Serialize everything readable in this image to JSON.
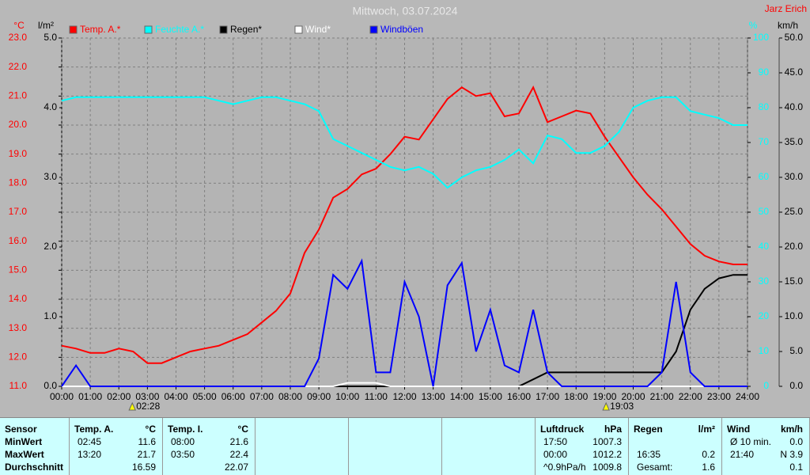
{
  "chart_data": {
    "type": "line",
    "title": "Mittwoch, 03.07.2024",
    "author": "Jarz Erich",
    "y_label": "°C",
    "y3_label": "l/m²",
    "y2_label": "%",
    "y4_label": "km/h",
    "x": [
      0,
      0.5,
      1,
      1.5,
      2,
      2.5,
      3,
      3.5,
      4,
      4.5,
      5,
      5.5,
      6,
      6.5,
      7,
      7.5,
      8,
      8.5,
      9,
      9.5,
      10,
      10.5,
      11,
      11.5,
      12,
      12.5,
      13,
      13.5,
      14,
      14.5,
      15,
      15.5,
      16,
      16.5,
      17,
      17.5,
      18,
      18.5,
      19,
      19.5,
      20,
      20.5,
      21,
      21.5,
      22,
      22.5,
      23,
      23.5,
      24
    ],
    "xlim": [
      0,
      24
    ],
    "xticks": [
      {
        "value": 0,
        "label": "00:00"
      },
      {
        "value": 1,
        "label": "01:00"
      },
      {
        "value": 2,
        "label": "02:00"
      },
      {
        "value": 3,
        "label": "03:00"
      },
      {
        "value": 4,
        "label": "04:00"
      },
      {
        "value": 5,
        "label": "05:00"
      },
      {
        "value": 6,
        "label": "06:00"
      },
      {
        "value": 7,
        "label": "07:00"
      },
      {
        "value": 8,
        "label": "08:00"
      },
      {
        "value": 9,
        "label": "09:00"
      },
      {
        "value": 10,
        "label": "10:00"
      },
      {
        "value": 11,
        "label": "11:00"
      },
      {
        "value": 12,
        "label": "12:00"
      },
      {
        "value": 13,
        "label": "13:00"
      },
      {
        "value": 14,
        "label": "14:00"
      },
      {
        "value": 15,
        "label": "15:00"
      },
      {
        "value": 16,
        "label": "16:00"
      },
      {
        "value": 17,
        "label": "17:00"
      },
      {
        "value": 18,
        "label": "18:00"
      },
      {
        "value": 19,
        "label": "19:00"
      },
      {
        "value": 20,
        "label": "20:00"
      },
      {
        "value": 21,
        "label": "21:00"
      },
      {
        "value": 22,
        "label": "22:00"
      },
      {
        "value": 23,
        "label": "23:00"
      },
      {
        "value": 24,
        "label": "24:00"
      }
    ],
    "ylim": [
      11,
      23
    ],
    "yticks": [
      {
        "value": 11,
        "label": "11.0"
      },
      {
        "value": 12,
        "label": "12.0"
      },
      {
        "value": 13,
        "label": "13.0"
      },
      {
        "value": 14,
        "label": "14.0"
      },
      {
        "value": 15,
        "label": "15.0"
      },
      {
        "value": 16,
        "label": "16.0"
      },
      {
        "value": 17,
        "label": "17.0"
      },
      {
        "value": 18,
        "label": "18.0"
      },
      {
        "value": 19,
        "label": "19.0"
      },
      {
        "value": 20,
        "label": "20.0"
      },
      {
        "value": 21,
        "label": "21.0"
      },
      {
        "value": 22,
        "label": "22.0"
      },
      {
        "value": 23,
        "label": "23.0"
      }
    ],
    "y3lim": [
      0,
      5
    ],
    "y3ticks": [
      {
        "value": 0,
        "label": "0.0"
      },
      {
        "value": 1,
        "label": "1.0"
      },
      {
        "value": 2,
        "label": "2.0"
      },
      {
        "value": 3,
        "label": "3.0"
      },
      {
        "value": 4,
        "label": "4.0"
      },
      {
        "value": 5,
        "label": "5.0"
      }
    ],
    "y2lim": [
      0,
      100
    ],
    "y2ticks": [
      0,
      10,
      20,
      30,
      40,
      50,
      60,
      70,
      80,
      90,
      100
    ],
    "y4lim": [
      0,
      50
    ],
    "y4ticks": [
      {
        "value": 0,
        "label": "0.0"
      },
      {
        "value": 5,
        "label": "5.0"
      },
      {
        "value": 10,
        "label": "10.0"
      },
      {
        "value": 15,
        "label": "15.0"
      },
      {
        "value": 20,
        "label": "20.0"
      },
      {
        "value": 25,
        "label": "25.0"
      },
      {
        "value": 30,
        "label": "30.0"
      },
      {
        "value": 35,
        "label": "35.0"
      },
      {
        "value": 40,
        "label": "40.0"
      },
      {
        "value": 45,
        "label": "45.0"
      },
      {
        "value": 50,
        "label": "50.0"
      }
    ],
    "grid": true,
    "series": [
      {
        "name": "Temp. A.*",
        "color": "#ff0000",
        "axis": "y",
        "values": [
          12.4,
          12.3,
          12.15,
          12.15,
          12.3,
          12.2,
          11.8,
          11.8,
          12.0,
          12.2,
          12.3,
          12.4,
          12.6,
          12.8,
          13.2,
          13.6,
          14.2,
          15.6,
          16.4,
          17.5,
          17.8,
          18.3,
          18.5,
          19.0,
          19.6,
          19.5,
          20.2,
          20.9,
          21.3,
          21.0,
          21.1,
          20.3,
          20.4,
          21.3,
          20.1,
          20.3,
          20.5,
          20.4,
          19.6,
          18.9,
          18.2,
          17.6,
          17.1,
          16.5,
          15.9,
          15.5,
          15.3,
          15.2,
          15.2
        ]
      },
      {
        "name": "Feuchte A.*",
        "color": "#00ffff",
        "axis": "y2",
        "values": [
          82,
          83,
          83,
          83,
          83,
          83,
          83,
          83,
          83,
          83,
          83,
          82,
          81,
          82,
          83,
          83,
          82,
          81,
          79,
          71,
          69,
          67,
          65,
          63,
          62,
          63,
          61,
          57,
          60,
          62,
          63,
          65,
          68,
          64,
          72,
          71,
          67,
          67,
          69,
          73,
          80,
          82,
          83,
          83,
          79,
          78,
          77,
          75,
          75
        ]
      },
      {
        "name": "Regen*",
        "color": "#000000",
        "axis": "y3",
        "values": [
          0,
          0,
          0,
          0,
          0,
          0,
          0,
          0,
          0,
          0,
          0,
          0,
          0,
          0,
          0,
          0,
          0,
          0,
          0,
          0,
          0,
          0,
          0,
          0,
          0,
          0,
          0,
          0,
          0,
          0,
          0,
          0,
          0,
          0.1,
          0.2,
          0.2,
          0.2,
          0.2,
          0.2,
          0.2,
          0.2,
          0.2,
          0.2,
          0.5,
          1.1,
          1.4,
          1.55,
          1.6,
          1.6
        ]
      },
      {
        "name": "Wind*",
        "color": "#ffffff",
        "axis": "y4",
        "values": [
          0,
          0,
          0,
          0,
          0,
          0,
          0,
          0,
          0,
          0,
          0,
          0,
          0,
          0,
          0,
          0,
          0,
          0,
          0,
          0,
          0.5,
          0.5,
          0.5,
          0,
          0,
          0,
          0,
          0,
          0,
          0,
          0,
          0,
          0,
          0,
          0,
          0,
          0,
          0,
          0,
          0,
          0,
          0,
          0,
          0,
          0,
          0,
          0,
          0,
          0
        ]
      },
      {
        "name": "Windböen",
        "color": "#0000ff",
        "axis": "y4",
        "values": [
          0,
          3,
          0,
          0,
          0,
          0,
          0,
          0,
          0,
          0,
          0,
          0,
          0,
          0,
          0,
          0,
          0,
          0,
          4,
          16,
          14,
          18,
          2,
          2,
          15,
          10,
          0,
          14.5,
          17.7,
          5,
          11,
          3,
          2,
          11,
          2,
          0,
          0,
          0,
          0,
          0,
          0,
          0,
          2,
          15,
          2,
          0,
          0,
          0,
          0
        ]
      }
    ],
    "annotations": [
      {
        "value": 2.47,
        "label": "02:28"
      },
      {
        "value": 19.05,
        "label": "19:03"
      }
    ]
  },
  "stats": {
    "sensor_column": [
      "Sensor",
      "MinWert",
      "MaxWert",
      "Durchschnitt"
    ],
    "groups": [
      {
        "name": "Temp. A.",
        "unit": "°C",
        "rows": [
          [
            "02:45",
            "11.6"
          ],
          [
            "13:20",
            "21.7"
          ],
          [
            "16.59"
          ]
        ]
      },
      {
        "name": "Temp. I.",
        "unit": "°C",
        "rows": [
          [
            "08:00",
            "21.6"
          ],
          [
            "03:50",
            "22.4"
          ],
          [
            "22.07"
          ]
        ]
      },
      {
        "name": "Luftdruck",
        "unit": "hPa",
        "rows": [
          [
            "17:50",
            "1007.3"
          ],
          [
            "00:00",
            "1012.2"
          ],
          [
            "^0.9hPa/h",
            "1009.8"
          ]
        ]
      },
      {
        "name": "Regen",
        "unit": "l/m²",
        "rows": [
          [],
          [
            "16:35",
            "0.2"
          ],
          [
            "Gesamt:",
            "1.6"
          ]
        ]
      },
      {
        "name": "Wind",
        "unit": "km/h",
        "rows": [
          [
            "Ø 10 min.",
            "0.0"
          ],
          [
            "21:40",
            "N 3.9"
          ],
          [
            "0.1"
          ]
        ]
      }
    ]
  }
}
